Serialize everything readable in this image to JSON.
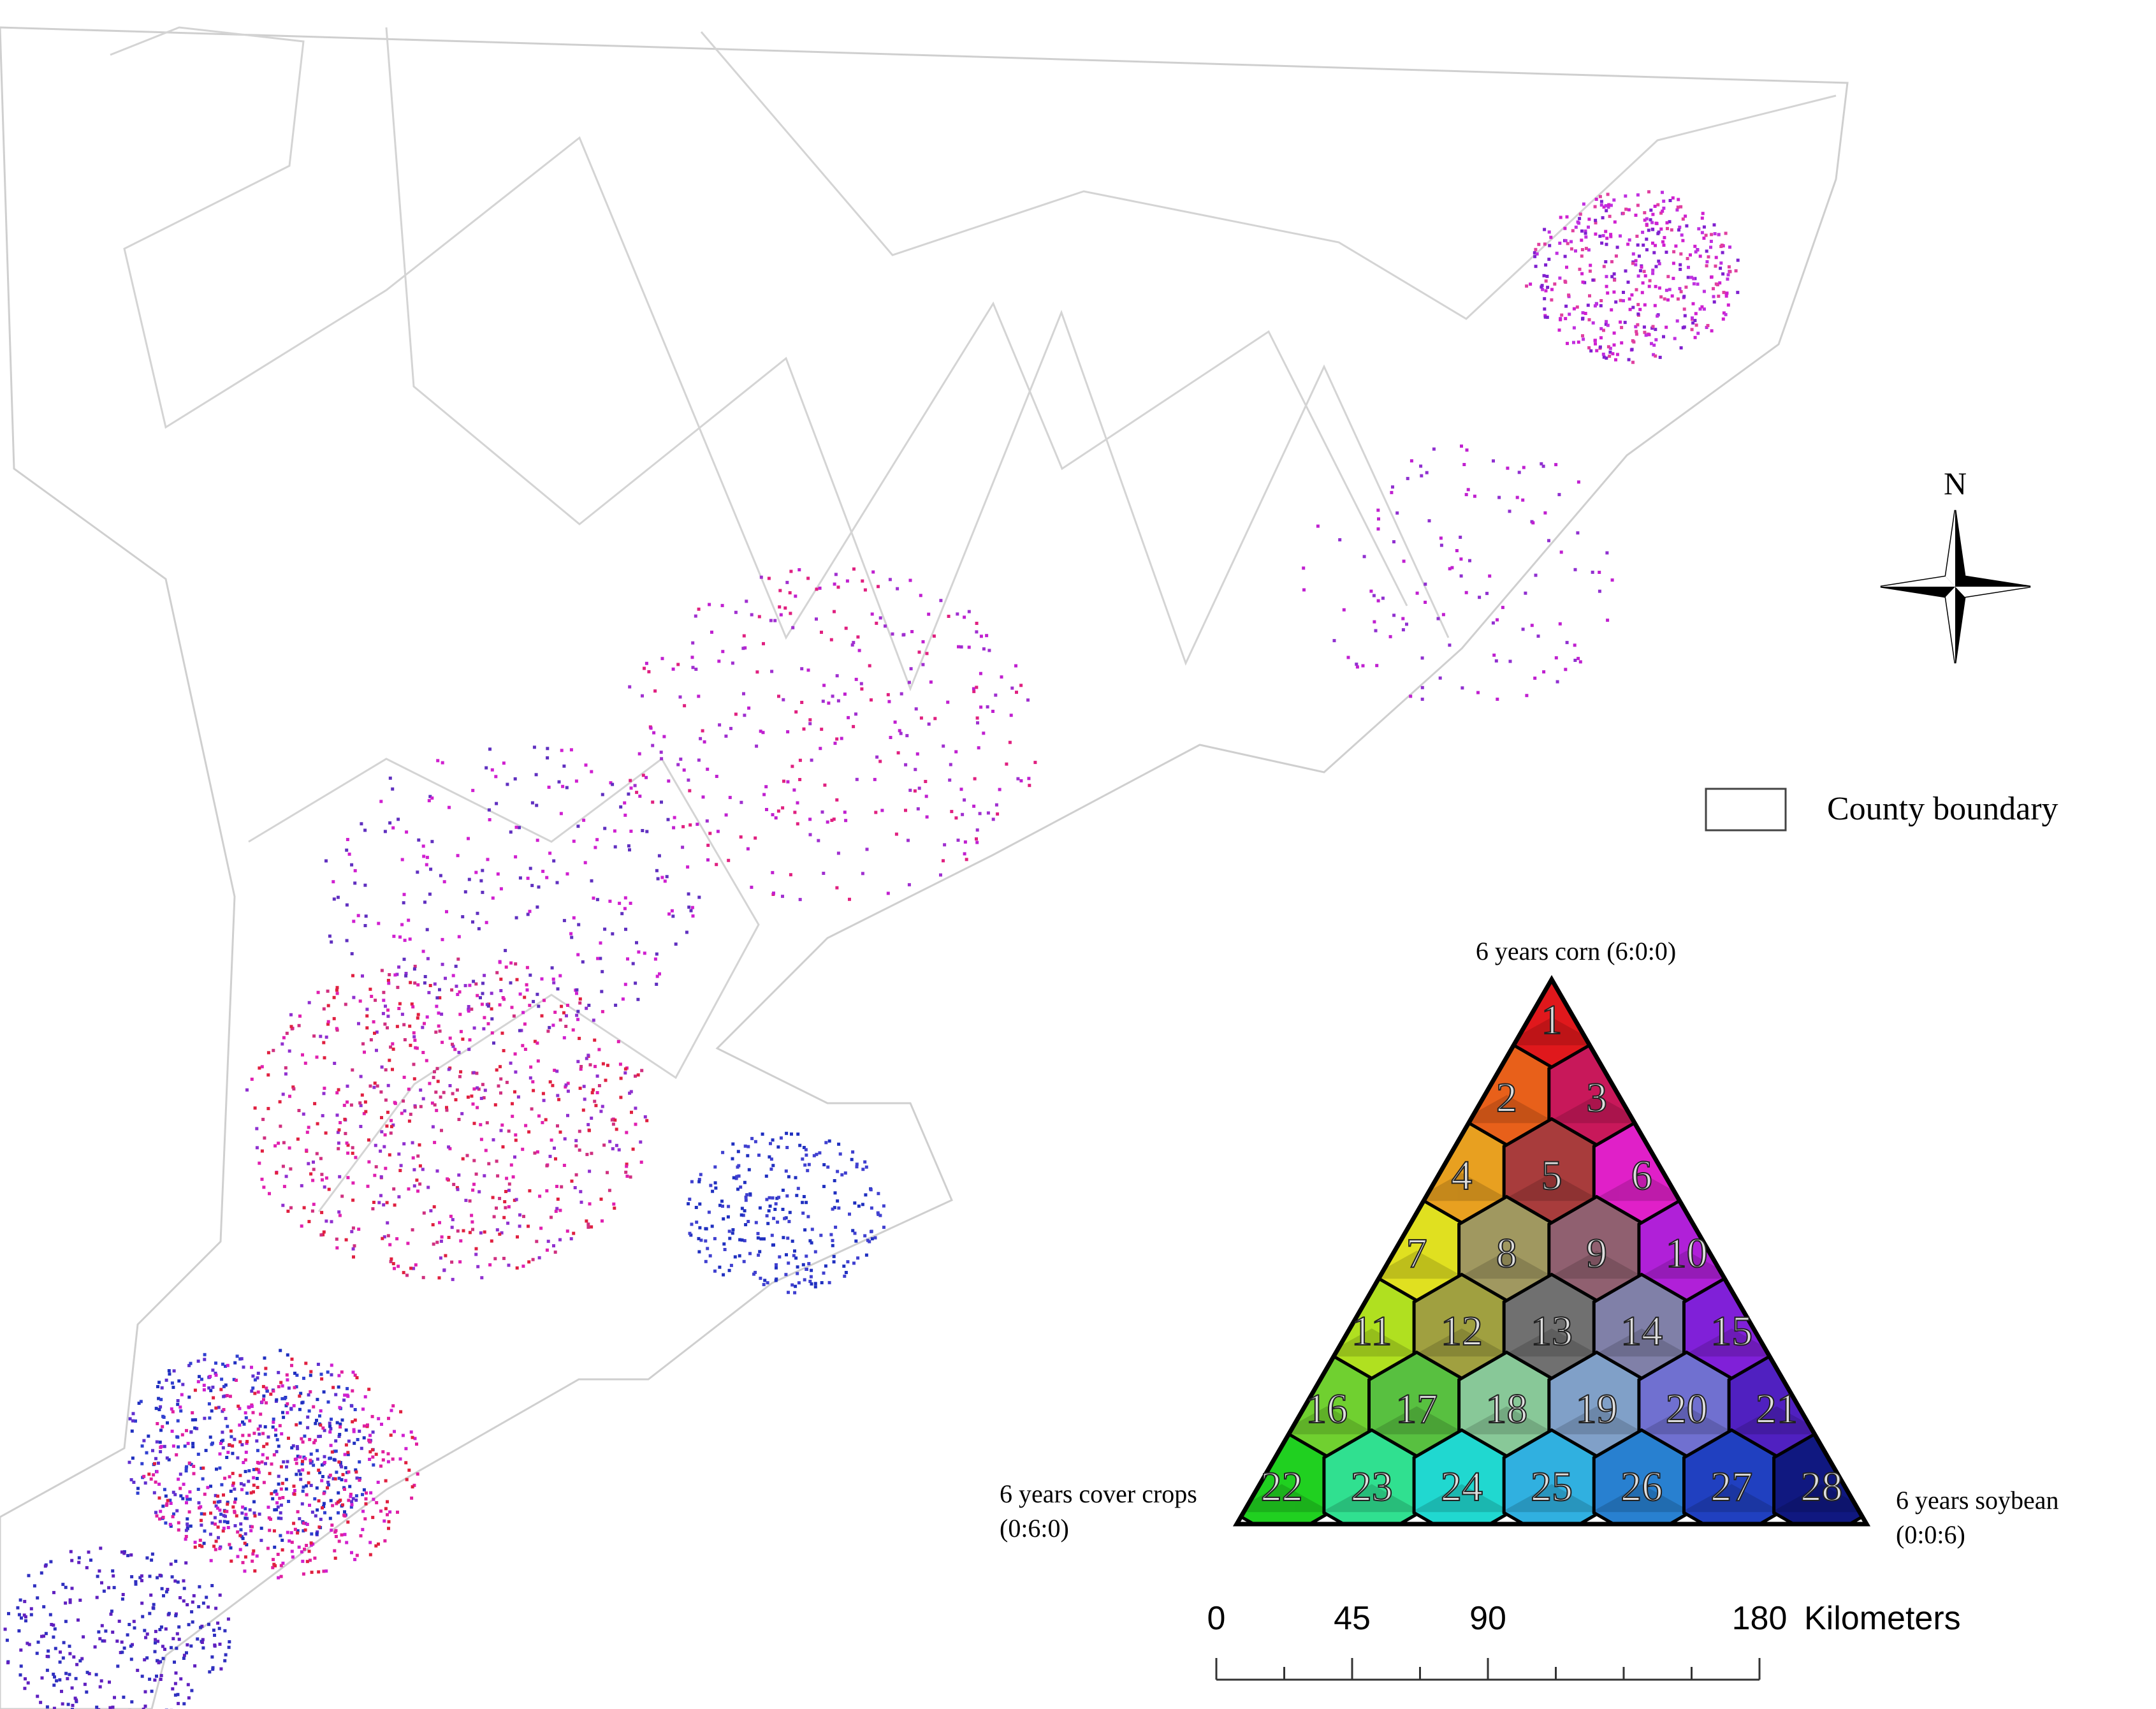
{
  "map": {
    "north_label": "N",
    "legend": {
      "county_boundary": "County boundary"
    }
  },
  "triangle_legend": {
    "top_label": "6 years corn (6:0:0)",
    "left_label": [
      "6 years cover crops",
      "(0:6:0)"
    ],
    "right_label": [
      "6 years soybean",
      "(0:0:6)"
    ],
    "cells": [
      {
        "label": "1",
        "color": "#e0181c"
      },
      {
        "label": "2",
        "color": "#e8601a"
      },
      {
        "label": "3",
        "color": "#c8185a"
      },
      {
        "label": "4",
        "color": "#e8a020"
      },
      {
        "label": "5",
        "color": "#a83c3c"
      },
      {
        "label": "6",
        "color": "#e020c8"
      },
      {
        "label": "7",
        "color": "#e0e020"
      },
      {
        "label": "8",
        "color": "#a09860"
      },
      {
        "label": "9",
        "color": "#906070"
      },
      {
        "label": "10",
        "color": "#b020d8"
      },
      {
        "label": "11",
        "color": "#b0e020"
      },
      {
        "label": "12",
        "color": "#a0a040"
      },
      {
        "label": "13",
        "color": "#707070"
      },
      {
        "label": "14",
        "color": "#8080a8"
      },
      {
        "label": "15",
        "color": "#8020d8"
      },
      {
        "label": "16",
        "color": "#70d030"
      },
      {
        "label": "17",
        "color": "#58c040"
      },
      {
        "label": "18",
        "color": "#88c898"
      },
      {
        "label": "19",
        "color": "#80a0c8"
      },
      {
        "label": "20",
        "color": "#7070d0"
      },
      {
        "label": "21",
        "color": "#5020c0"
      },
      {
        "label": "22",
        "color": "#20d020"
      },
      {
        "label": "23",
        "color": "#30e090"
      },
      {
        "label": "24",
        "color": "#20d8d0"
      },
      {
        "label": "25",
        "color": "#30b0e0"
      },
      {
        "label": "26",
        "color": "#2880d0"
      },
      {
        "label": "27",
        "color": "#2040c0"
      },
      {
        "label": "28",
        "color": "#101880"
      }
    ]
  },
  "scale_bar": {
    "xlim": [
      0,
      180
    ],
    "ticks": [
      0,
      45,
      90,
      180
    ],
    "unit": "Kilometers"
  }
}
